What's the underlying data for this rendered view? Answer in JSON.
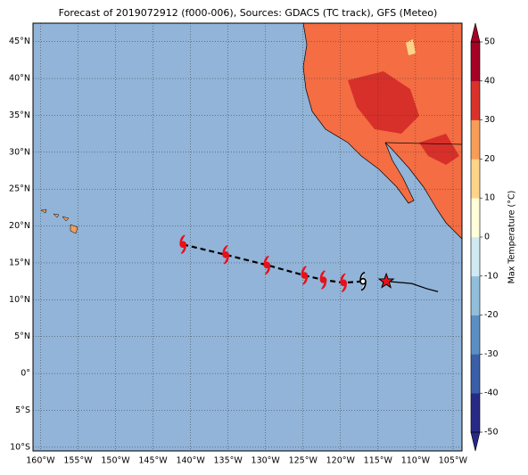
{
  "map": {
    "title": "Forecast of 2019072912 (f000-006), Sources: GDACS (TC track), GFS (Meteo)",
    "xlim": [
      -161,
      -103.8
    ],
    "ylim": [
      -10.5,
      47.5
    ],
    "xticks": [
      {
        "value": -160,
        "label": "160°W"
      },
      {
        "value": -155,
        "label": "155°W"
      },
      {
        "value": -150,
        "label": "150°W"
      },
      {
        "value": -145,
        "label": "145°W"
      },
      {
        "value": -140,
        "label": "140°W"
      },
      {
        "value": -135,
        "label": "135°W"
      },
      {
        "value": -130,
        "label": "130°W"
      },
      {
        "value": -125,
        "label": "125°W"
      },
      {
        "value": -120,
        "label": "120°W"
      },
      {
        "value": -115,
        "label": "115°W"
      },
      {
        "value": -110,
        "label": "110°W"
      },
      {
        "value": -105,
        "label": "105°W"
      }
    ],
    "yticks": [
      {
        "value": -10,
        "label": "10°S"
      },
      {
        "value": -5,
        "label": "5°S"
      },
      {
        "value": 0,
        "label": "0°"
      },
      {
        "value": 5,
        "label": "5°N"
      },
      {
        "value": 10,
        "label": "10°N"
      },
      {
        "value": 15,
        "label": "15°N"
      },
      {
        "value": 20,
        "label": "20°N"
      },
      {
        "value": 25,
        "label": "25°N"
      },
      {
        "value": 30,
        "label": "30°N"
      },
      {
        "value": 35,
        "label": "35°N"
      },
      {
        "value": 40,
        "label": "40°N"
      },
      {
        "value": 45,
        "label": "45°N"
      }
    ],
    "track": {
      "forecast_lon": [
        -141,
        -135.3,
        -129.8,
        -124.8,
        -122.3,
        -119.6,
        -117
      ],
      "forecast_lat": [
        17.5,
        16.1,
        14.7,
        13.3,
        12.7,
        12.3,
        12.5
      ],
      "current": [
        -113.9,
        12.5
      ],
      "past_lon": [
        -113.9,
        -110.5,
        -108.5,
        -107
      ],
      "past_lat": [
        12.5,
        12.2,
        11.5,
        11.1
      ]
    },
    "colorbar": {
      "label": "Max Temperature (°C)",
      "lim": [
        -50,
        50
      ],
      "ticks": [
        50,
        40,
        30,
        20,
        10,
        0,
        -10,
        -20,
        -30,
        -40,
        -50
      ],
      "colors": [
        "#262a85",
        "#3a5fa8",
        "#5b8fc3",
        "#91bfdb",
        "#d1e9f3",
        "#fffed8",
        "#fdd48a",
        "#f79d57",
        "#d9322b",
        "#a40326"
      ]
    }
  }
}
